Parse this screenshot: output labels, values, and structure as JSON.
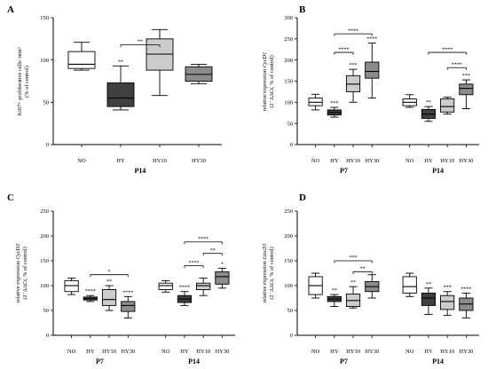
{
  "colors": {
    "white": "#ffffff",
    "light": "#cccccc",
    "dark": "#404040",
    "mid": "#8c8c8c"
  },
  "chart_data": [
    {
      "panel": "A",
      "type": "box",
      "ylabel": "Ki67+ proliferative cells/ mm² (% of control)",
      "ylim": [
        0,
        150
      ],
      "yticks": [
        0,
        50,
        100,
        150
      ],
      "groups": [
        {
          "label": "P14",
          "categories": [
            {
              "name": "NO",
              "min": 88,
              "q1": 90,
              "median": 95,
              "q3": 110,
              "max": 121,
              "color": "white"
            },
            {
              "name": "HY",
              "min": 41,
              "q1": 45,
              "median": 55,
              "q3": 73,
              "max": 93,
              "color": "dark",
              "sig": "**"
            },
            {
              "name": "HY10",
              "min": 58,
              "q1": 88,
              "median": 107,
              "q3": 125,
              "max": 136,
              "color": "light"
            },
            {
              "name": "HY30",
              "min": 72,
              "q1": 75,
              "median": 83,
              "q3": 92,
              "max": 95,
              "color": "mid"
            }
          ]
        }
      ],
      "brackets": [
        {
          "from": "HY",
          "to": "HY10",
          "value": 118,
          "label": "**"
        }
      ]
    },
    {
      "panel": "B",
      "type": "box",
      "ylabel": "relative expression CycD1 (2^-ΔΔCt, % of control)",
      "ylim": [
        0,
        300
      ],
      "yticks": [
        0,
        50,
        100,
        150,
        200,
        250,
        300
      ],
      "groups": [
        {
          "label": "P7",
          "categories": [
            {
              "name": "NO",
              "min": 82,
              "q1": 92,
              "median": 100,
              "q3": 110,
              "max": 119,
              "color": "white"
            },
            {
              "name": "HY",
              "min": 65,
              "q1": 70,
              "median": 76,
              "q3": 82,
              "max": 88,
              "color": "dark",
              "sig": "***"
            },
            {
              "name": "HY10",
              "min": 100,
              "q1": 125,
              "median": 143,
              "q3": 163,
              "max": 178,
              "color": "light",
              "sig": "***"
            },
            {
              "name": "HY30",
              "min": 110,
              "q1": 157,
              "median": 173,
              "q3": 195,
              "max": 240,
              "color": "mid",
              "sig": "****"
            }
          ]
        },
        {
          "label": "P14",
          "categories": [
            {
              "name": "NO",
              "min": 88,
              "q1": 92,
              "median": 100,
              "q3": 108,
              "max": 118,
              "color": "white"
            },
            {
              "name": "HY",
              "min": 55,
              "q1": 62,
              "median": 72,
              "q3": 83,
              "max": 90,
              "color": "dark",
              "sig": "**"
            },
            {
              "name": "HY10",
              "min": 72,
              "q1": 77,
              "median": 90,
              "q3": 108,
              "max": 112,
              "color": "light"
            },
            {
              "name": "HY30",
              "min": 85,
              "q1": 118,
              "median": 133,
              "q3": 143,
              "max": 153,
              "color": "mid",
              "sig": "***"
            }
          ]
        }
      ],
      "brackets": [
        {
          "group": 0,
          "from": "HY",
          "to": "HY30",
          "value": 262,
          "label": "****"
        },
        {
          "group": 0,
          "from": "HY",
          "to": "HY10",
          "value": 218,
          "label": "****"
        },
        {
          "group": 1,
          "from": "HY",
          "to": "HY30",
          "value": 218,
          "label": "****"
        },
        {
          "group": 1,
          "from": "HY10",
          "to": "HY30",
          "value": 182,
          "label": "****"
        }
      ]
    },
    {
      "panel": "C",
      "type": "box",
      "ylabel": "relative expression CycD2 (2^-ΔΔCt, % of control)",
      "ylim": [
        0,
        250
      ],
      "yticks": [
        0,
        50,
        100,
        150,
        200,
        250
      ],
      "groups": [
        {
          "label": "P7",
          "categories": [
            {
              "name": "NO",
              "min": 82,
              "q1": 88,
              "median": 100,
              "q3": 110,
              "max": 115,
              "color": "white"
            },
            {
              "name": "HY",
              "min": 68,
              "q1": 71,
              "median": 74,
              "q3": 77,
              "max": 80,
              "color": "dark",
              "sig": "****"
            },
            {
              "name": "HY10",
              "min": 50,
              "q1": 60,
              "median": 72,
              "q3": 92,
              "max": 100,
              "color": "light",
              "sig": "**"
            },
            {
              "name": "HY30",
              "min": 35,
              "q1": 48,
              "median": 60,
              "q3": 68,
              "max": 78,
              "color": "mid",
              "sig": "****"
            }
          ]
        },
        {
          "label": "P14",
          "categories": [
            {
              "name": "NO",
              "min": 87,
              "q1": 92,
              "median": 100,
              "q3": 105,
              "max": 110,
              "color": "white"
            },
            {
              "name": "HY",
              "min": 60,
              "q1": 66,
              "median": 73,
              "q3": 80,
              "max": 88,
              "color": "dark",
              "sig": "****"
            },
            {
              "name": "HY10",
              "min": 80,
              "q1": 92,
              "median": 100,
              "q3": 105,
              "max": 115,
              "color": "light"
            },
            {
              "name": "HY30",
              "min": 95,
              "q1": 103,
              "median": 118,
              "q3": 128,
              "max": 135,
              "color": "mid",
              "sig": "*"
            }
          ]
        }
      ],
      "brackets": [
        {
          "group": 0,
          "from": "HY",
          "to": "HY30",
          "value": 122,
          "label": "*"
        },
        {
          "group": 1,
          "from": "HY",
          "to": "HY30",
          "value": 188,
          "label": "****"
        },
        {
          "group": 1,
          "from": "HY10",
          "to": "HY30",
          "value": 165,
          "label": "**"
        },
        {
          "group": 1,
          "from": "HY",
          "to": "HY10",
          "value": 140,
          "label": "****"
        }
      ]
    },
    {
      "panel": "D",
      "type": "box",
      "ylabel": "relative expression Gas2l3 (2^-ΔΔCt, % of control)",
      "ylim": [
        0,
        250
      ],
      "yticks": [
        0,
        50,
        100,
        150,
        200,
        250
      ],
      "groups": [
        {
          "label": "P7",
          "categories": [
            {
              "name": "NO",
              "min": 75,
              "q1": 82,
              "median": 100,
              "q3": 118,
              "max": 125,
              "color": "white"
            },
            {
              "name": "HY",
              "min": 58,
              "q1": 68,
              "median": 73,
              "q3": 78,
              "max": 82,
              "color": "dark",
              "sig": "**"
            },
            {
              "name": "HY10",
              "min": 55,
              "q1": 58,
              "median": 70,
              "q3": 83,
              "max": 98,
              "color": "light",
              "sig": "**"
            },
            {
              "name": "HY30",
              "min": 75,
              "q1": 88,
              "median": 98,
              "q3": 108,
              "max": 122,
              "color": "mid"
            }
          ]
        },
        {
          "label": "P14",
          "categories": [
            {
              "name": "NO",
              "min": 78,
              "q1": 85,
              "median": 98,
              "q3": 118,
              "max": 125,
              "color": "white"
            },
            {
              "name": "HY",
              "min": 42,
              "q1": 60,
              "median": 75,
              "q3": 85,
              "max": 95,
              "color": "dark",
              "sig": "**"
            },
            {
              "name": "HY10",
              "min": 40,
              "q1": 52,
              "median": 68,
              "q3": 80,
              "max": 88,
              "color": "light",
              "sig": "***"
            },
            {
              "name": "HY30",
              "min": 35,
              "q1": 50,
              "median": 63,
              "q3": 75,
              "max": 85,
              "color": "mid",
              "sig": "****"
            }
          ]
        }
      ],
      "brackets": [
        {
          "group": 0,
          "from": "HY",
          "to": "HY30",
          "value": 150,
          "label": "***"
        },
        {
          "group": 0,
          "from": "HY10",
          "to": "HY30",
          "value": 128,
          "label": "**"
        }
      ]
    }
  ]
}
